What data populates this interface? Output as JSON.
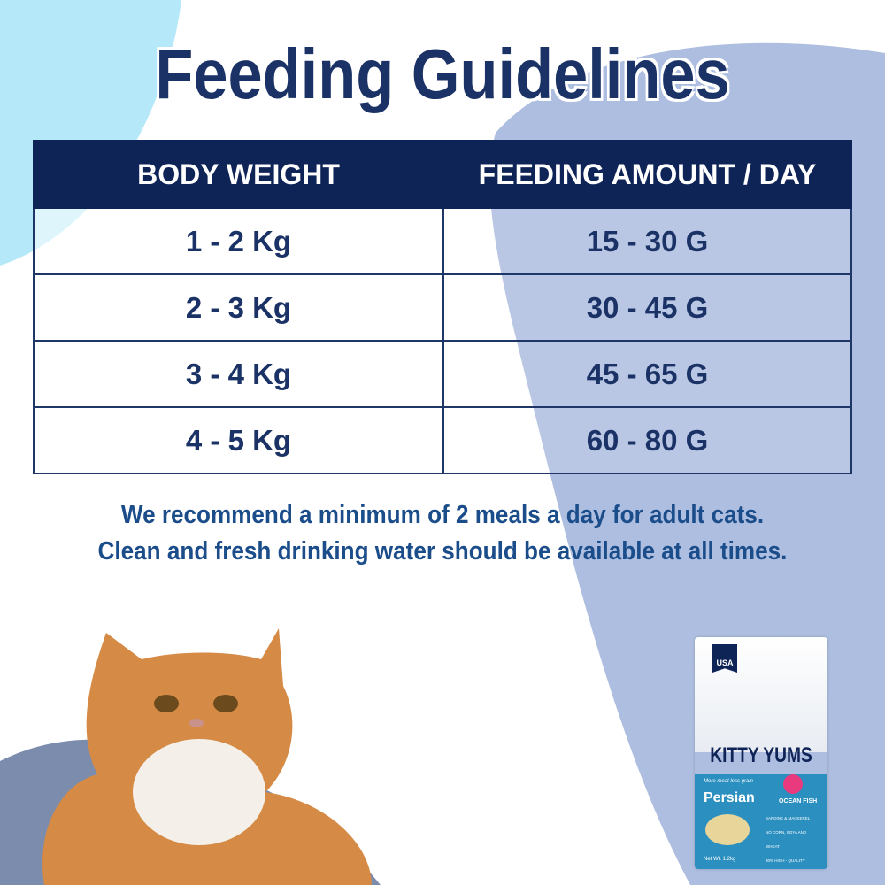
{
  "title": "Feeding Guidelines",
  "table": {
    "headers": [
      "BODY WEIGHT",
      "FEEDING AMOUNT / DAY"
    ],
    "rows": [
      [
        "1 - 2 Kg",
        "15 - 30 G"
      ],
      [
        "2 - 3 Kg",
        "30 - 45 G"
      ],
      [
        "3 - 4 Kg",
        "45 - 65 G"
      ],
      [
        "4 - 5 Kg",
        "60 - 80 G"
      ]
    ]
  },
  "note": [
    "We recommend a minimum of 2 meals a day for adult cats.",
    "Clean and fresh drinking water should be available at all times."
  ],
  "product": {
    "badge": "USA",
    "brand": "KITTY YUMS",
    "tagline": "More meat less grain",
    "variant": "Persian",
    "flavor": "OCEAN FISH",
    "claims": [
      "SARDINE & MACKEREL",
      "NO CORN, SOYA AND WHEAT",
      "30% HIGH - QUALITY PROTEIN"
    ],
    "net_weight": "Net Wt. 1.2kg"
  },
  "colors": {
    "navy": "#0e2356",
    "text": "#1b3266",
    "lavender": "#aebee0",
    "cyan": "#b5e8f8"
  }
}
